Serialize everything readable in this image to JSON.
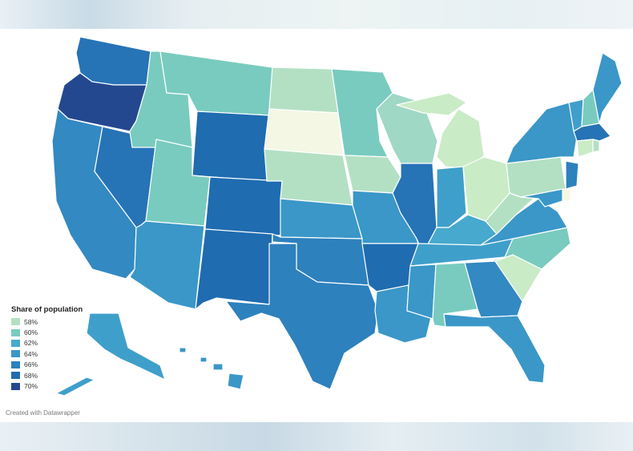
{
  "map": {
    "legend_title": "Share of population",
    "credit": "Created with Datawrapper",
    "scale": [
      {
        "label": "58%",
        "value": 58,
        "color": "#b3e0c3"
      },
      {
        "label": "60%",
        "value": 60,
        "color": "#79cbbf"
      },
      {
        "label": "62%",
        "value": 62,
        "color": "#46a9cd"
      },
      {
        "label": "64%",
        "value": 64,
        "color": "#3a97c8"
      },
      {
        "label": "66%",
        "value": 66,
        "color": "#2d81bd"
      },
      {
        "label": "68%",
        "value": 68,
        "color": "#1f6cb0"
      },
      {
        "label": "70%",
        "value": 70,
        "color": "#24488f"
      }
    ],
    "palette": {
      "v56": "#f3f7e4",
      "v57": "#c9ebc5",
      "v58": "#b3e0c3",
      "v59": "#9fd8c5",
      "v60": "#79cbbf",
      "v61": "#5fb8c6",
      "v62": "#46a9cd",
      "v63": "#3f9fcb",
      "v64": "#3a97c8",
      "v65": "#3389c2",
      "v66": "#2d81bd",
      "v67": "#2673b6",
      "v68": "#1f6cb0",
      "v70": "#24488f"
    },
    "states": {
      "WA": 67,
      "OR": 70,
      "CA": 65,
      "NV": 67,
      "ID": 60,
      "MT": 60,
      "WY": 68,
      "UT": 60,
      "CO": 68,
      "AZ": 64,
      "NM": 68,
      "ND": 58,
      "SD": 56,
      "NE": 58,
      "KS": 64,
      "OK": 66,
      "TX": 66,
      "MN": 60,
      "IA": 58,
      "MO": 64,
      "AR": 68,
      "LA": 64,
      "WI": 59,
      "IL": 67,
      "MI": 57,
      "IN": 63,
      "OH": 57,
      "KY": 62,
      "TN": 63,
      "MS": 64,
      "AL": 60,
      "WV": 58,
      "VA": 64,
      "NC": 60,
      "SC": 57,
      "GA": 65,
      "FL": 64,
      "PA": 58,
      "NY": 64,
      "VT": 63,
      "NH": 60,
      "ME": 64,
      "MA": 67,
      "CT": 57,
      "RI": 58,
      "NJ": 66,
      "DE": 56,
      "MD": 64,
      "AK": 63,
      "HI": 64
    }
  }
}
